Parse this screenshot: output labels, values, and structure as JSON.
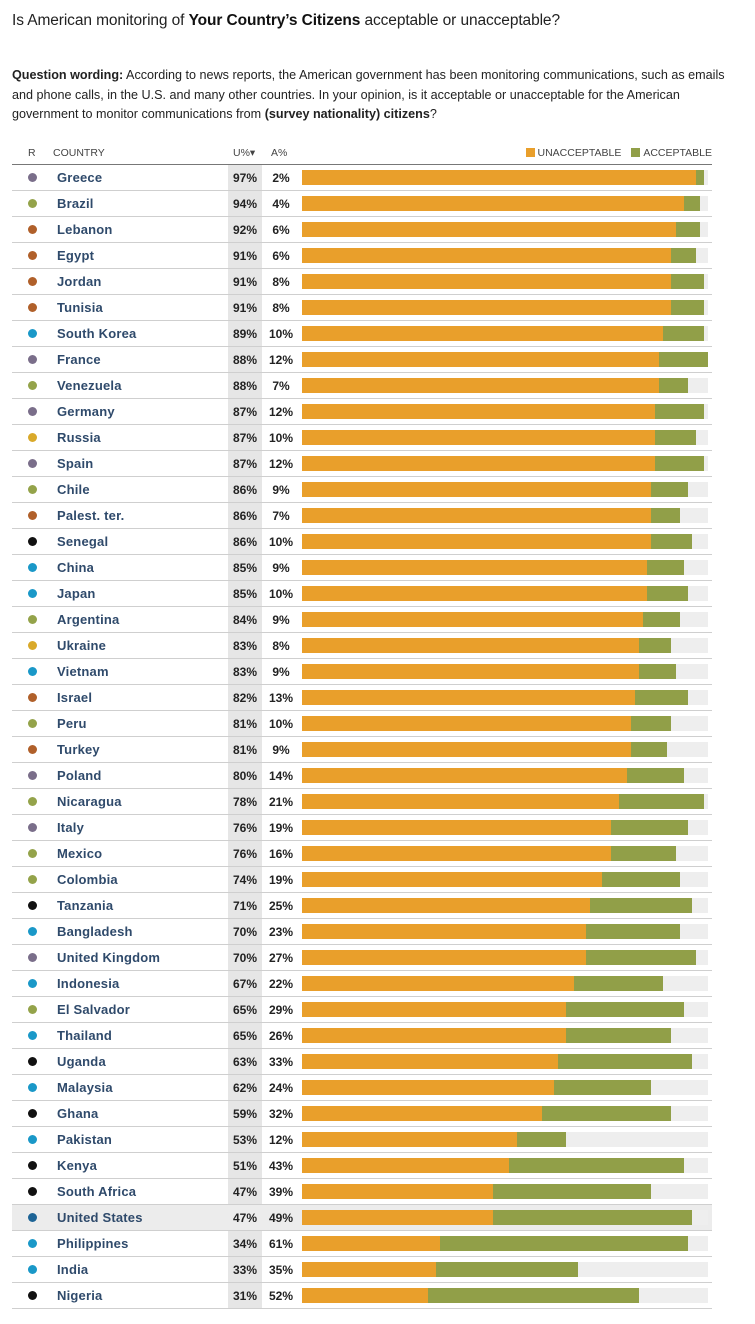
{
  "title": {
    "prefix": "Is American monitoring of ",
    "bold": "Your Country’s Citizens",
    "suffix": " acceptable or unacceptable?"
  },
  "wording": {
    "label": "Question wording:",
    "text": " According to news reports, the American government has been monitoring communications, such as emails and phone calls, in the U.S. and many other countries. In your opinion, is it acceptable or unacceptable for the American government to monitor communications from ",
    "bold": "(survey nationality) citizens",
    "end": "?"
  },
  "table_header": {
    "r": "R",
    "country": "COUNTRY",
    "u": "U%▾",
    "a": "A%",
    "legend_unacceptable": "UNACCEPTABLE",
    "legend_acceptable": "ACCEPTABLE"
  },
  "colors": {
    "unacceptable": "#e99f2b",
    "acceptable": "#919f48",
    "track": "#eeeeee",
    "region": {
      "Europe": "#7a6e8a",
      "LatAm": "#94a34a",
      "MidEast": "#b0602a",
      "Asia": "#1a98c8",
      "Russia": "#d9a92a",
      "Africa": "#111111",
      "US": "#1d6496"
    }
  },
  "chart_data": {
    "type": "bar",
    "orientation": "horizontal",
    "stacked": true,
    "title": "Is American monitoring of Your Country’s Citizens acceptable or unacceptable?",
    "xlim": [
      0,
      100
    ],
    "legend": "top-right",
    "series_names": [
      "UNACCEPTABLE",
      "ACCEPTABLE"
    ],
    "sorted_by": "U%",
    "rows": [
      {
        "country": "Greece",
        "region": "Europe",
        "u": 97,
        "a": 2
      },
      {
        "country": "Brazil",
        "region": "LatAm",
        "u": 94,
        "a": 4
      },
      {
        "country": "Lebanon",
        "region": "MidEast",
        "u": 92,
        "a": 6
      },
      {
        "country": "Egypt",
        "region": "MidEast",
        "u": 91,
        "a": 6
      },
      {
        "country": "Jordan",
        "region": "MidEast",
        "u": 91,
        "a": 8
      },
      {
        "country": "Tunisia",
        "region": "MidEast",
        "u": 91,
        "a": 8
      },
      {
        "country": "South Korea",
        "region": "Asia",
        "u": 89,
        "a": 10
      },
      {
        "country": "France",
        "region": "Europe",
        "u": 88,
        "a": 12
      },
      {
        "country": "Venezuela",
        "region": "LatAm",
        "u": 88,
        "a": 7
      },
      {
        "country": "Germany",
        "region": "Europe",
        "u": 87,
        "a": 12
      },
      {
        "country": "Russia",
        "region": "Russia",
        "u": 87,
        "a": 10
      },
      {
        "country": "Spain",
        "region": "Europe",
        "u": 87,
        "a": 12
      },
      {
        "country": "Chile",
        "region": "LatAm",
        "u": 86,
        "a": 9
      },
      {
        "country": "Palest. ter.",
        "region": "MidEast",
        "u": 86,
        "a": 7
      },
      {
        "country": "Senegal",
        "region": "Africa",
        "u": 86,
        "a": 10
      },
      {
        "country": "China",
        "region": "Asia",
        "u": 85,
        "a": 9
      },
      {
        "country": "Japan",
        "region": "Asia",
        "u": 85,
        "a": 10
      },
      {
        "country": "Argentina",
        "region": "LatAm",
        "u": 84,
        "a": 9
      },
      {
        "country": "Ukraine",
        "region": "Russia",
        "u": 83,
        "a": 8
      },
      {
        "country": "Vietnam",
        "region": "Asia",
        "u": 83,
        "a": 9
      },
      {
        "country": "Israel",
        "region": "MidEast",
        "u": 82,
        "a": 13
      },
      {
        "country": "Peru",
        "region": "LatAm",
        "u": 81,
        "a": 10
      },
      {
        "country": "Turkey",
        "region": "MidEast",
        "u": 81,
        "a": 9
      },
      {
        "country": "Poland",
        "region": "Europe",
        "u": 80,
        "a": 14
      },
      {
        "country": "Nicaragua",
        "region": "LatAm",
        "u": 78,
        "a": 21
      },
      {
        "country": "Italy",
        "region": "Europe",
        "u": 76,
        "a": 19
      },
      {
        "country": "Mexico",
        "region": "LatAm",
        "u": 76,
        "a": 16
      },
      {
        "country": "Colombia",
        "region": "LatAm",
        "u": 74,
        "a": 19
      },
      {
        "country": "Tanzania",
        "region": "Africa",
        "u": 71,
        "a": 25
      },
      {
        "country": "Bangladesh",
        "region": "Asia",
        "u": 70,
        "a": 23
      },
      {
        "country": "United Kingdom",
        "region": "Europe",
        "u": 70,
        "a": 27
      },
      {
        "country": "Indonesia",
        "region": "Asia",
        "u": 67,
        "a": 22
      },
      {
        "country": "El Salvador",
        "region": "LatAm",
        "u": 65,
        "a": 29
      },
      {
        "country": "Thailand",
        "region": "Asia",
        "u": 65,
        "a": 26
      },
      {
        "country": "Uganda",
        "region": "Africa",
        "u": 63,
        "a": 33
      },
      {
        "country": "Malaysia",
        "region": "Asia",
        "u": 62,
        "a": 24
      },
      {
        "country": "Ghana",
        "region": "Africa",
        "u": 59,
        "a": 32
      },
      {
        "country": "Pakistan",
        "region": "Asia",
        "u": 53,
        "a": 12
      },
      {
        "country": "Kenya",
        "region": "Africa",
        "u": 51,
        "a": 43
      },
      {
        "country": "South Africa",
        "region": "Africa",
        "u": 47,
        "a": 39
      },
      {
        "country": "United States",
        "region": "US",
        "u": 47,
        "a": 49,
        "highlighted": true
      },
      {
        "country": "Philippines",
        "region": "Asia",
        "u": 34,
        "a": 61
      },
      {
        "country": "India",
        "region": "Asia",
        "u": 33,
        "a": 35
      },
      {
        "country": "Nigeria",
        "region": "Africa",
        "u": 31,
        "a": 52
      }
    ]
  }
}
